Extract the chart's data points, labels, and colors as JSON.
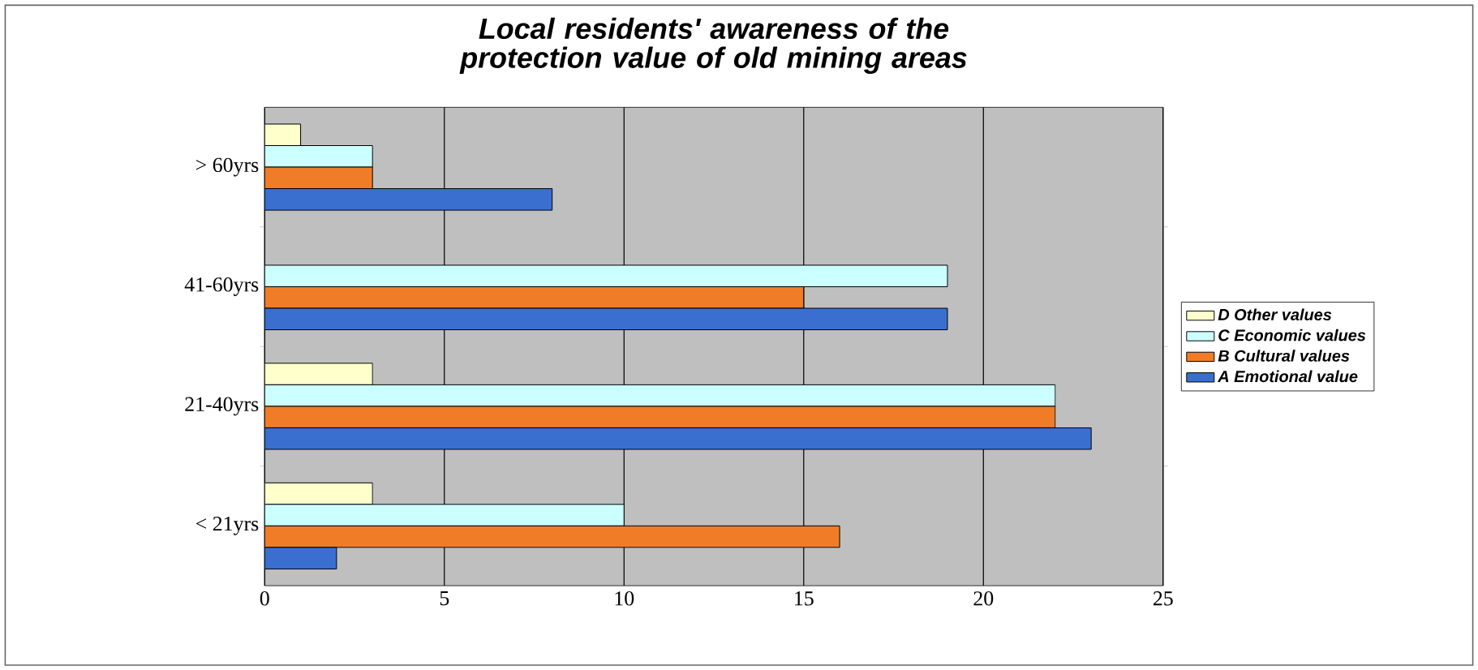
{
  "chart_data": {
    "type": "bar",
    "orientation": "horizontal",
    "title": "Local residents' awareness of the protection value of old mining areas",
    "categories": [
      "> 60yrs",
      "41-60yrs",
      "21-40yrs",
      "< 21yrs"
    ],
    "series": [
      {
        "name": "D Other values",
        "color": "#ffffcc",
        "values": [
          1,
          null,
          3,
          3
        ]
      },
      {
        "name": "C Economic values",
        "color": "#ccffff",
        "values": [
          3,
          19,
          22,
          10
        ]
      },
      {
        "name": "B Cultural values",
        "color": "#f07c28",
        "values": [
          3,
          15,
          22,
          16
        ]
      },
      {
        "name": "A Emotional value",
        "color": "#3a6fd0",
        "values": [
          8,
          19,
          23,
          2
        ]
      }
    ],
    "xlim": [
      0,
      25
    ],
    "xticks": [
      0,
      5,
      10,
      15,
      20,
      25
    ],
    "grid": "x",
    "legend": "right"
  }
}
